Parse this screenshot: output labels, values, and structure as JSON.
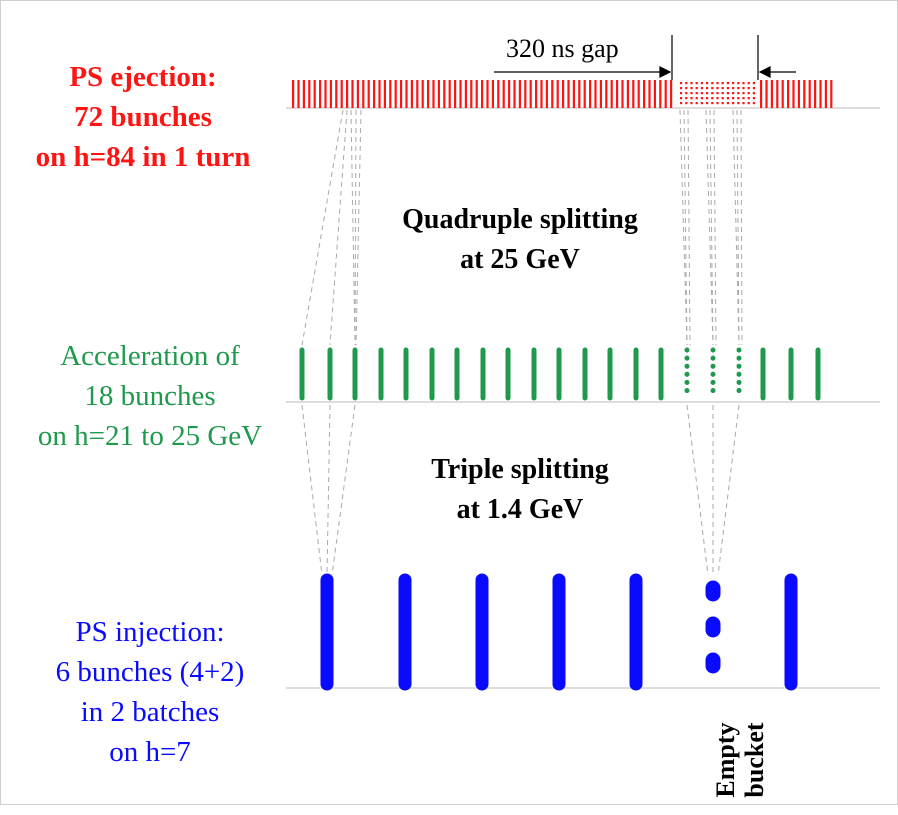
{
  "ps_ejection": {
    "line1": "PS ejection:",
    "line2": "72 bunches",
    "line3": "on h=84 in 1 turn"
  },
  "gap_label": "320 ns gap",
  "quadruple": {
    "line1": "Quadruple splitting",
    "line2": "at 25 GeV"
  },
  "acceleration": {
    "line1": "Acceleration of",
    "line2": "18 bunches",
    "line3": "on h=21 to 25 GeV"
  },
  "triple": {
    "line1": "Triple splitting",
    "line2": "at 1.4 GeV"
  },
  "ps_injection": {
    "line1": "PS injection:",
    "line2": "6 bunches (4+2)",
    "line3": "in 2 batches",
    "line4": "on h=7"
  },
  "empty_bucket": {
    "line1": "Empty",
    "line2": "bucket"
  },
  "colors": {
    "ejection": "#ff1414",
    "acceleration": "#1f9a4c",
    "injection": "#0a0aff"
  }
}
